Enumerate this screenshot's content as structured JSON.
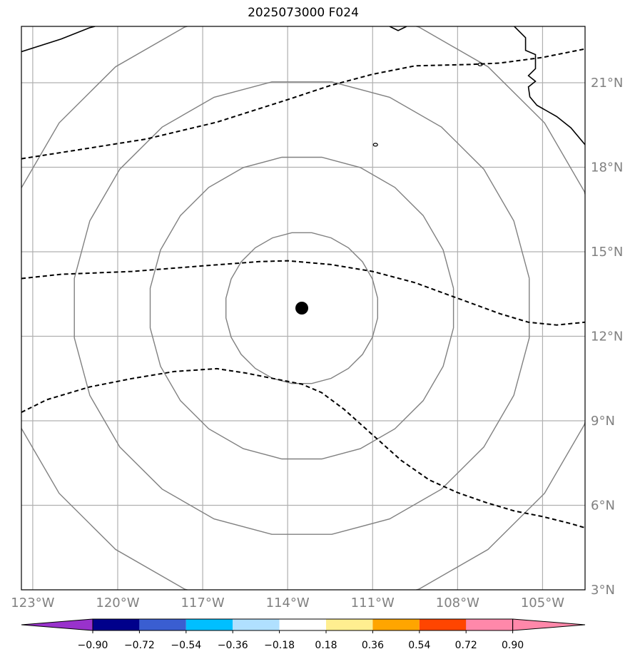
{
  "title": "2025073000 F024",
  "map": {
    "lon_range": [
      -123.4,
      -103.5
    ],
    "lat_range": [
      3,
      23
    ],
    "storm_center": {
      "lon": -113.5,
      "lat": 13
    },
    "range_ring_radii_deg": [
      2.7,
      5.4,
      8.1,
      10.8
    ],
    "lon_ticks": [
      {
        "value": -123,
        "label": "123°W"
      },
      {
        "value": -120,
        "label": "120°W"
      },
      {
        "value": -117,
        "label": "117°W"
      },
      {
        "value": -114,
        "label": "114°W"
      },
      {
        "value": -111,
        "label": "111°W"
      },
      {
        "value": -108,
        "label": "108°W"
      },
      {
        "value": -105,
        "label": "105°W"
      }
    ],
    "lat_ticks": [
      {
        "value": 3,
        "label": "3°N"
      },
      {
        "value": 6,
        "label": "6°N"
      },
      {
        "value": 9,
        "label": "9°N"
      },
      {
        "value": 12,
        "label": "12°N"
      },
      {
        "value": 15,
        "label": "15°N"
      },
      {
        "value": 18,
        "label": "18°N"
      },
      {
        "value": 21,
        "label": "21°N"
      }
    ],
    "dashed_contours": [
      [
        [
          -123.4,
          18.3
        ],
        [
          -121.5,
          18.6
        ],
        [
          -119,
          19.0
        ],
        [
          -116.5,
          19.6
        ],
        [
          -114,
          20.4
        ],
        [
          -112.5,
          20.9
        ],
        [
          -111,
          21.3
        ],
        [
          -109.5,
          21.6
        ],
        [
          -107.5,
          21.65
        ],
        [
          -106.5,
          21.7
        ],
        [
          -105,
          21.9
        ],
        [
          -103.5,
          22.2
        ]
      ],
      [
        [
          -123.4,
          14.05
        ],
        [
          -122,
          14.2
        ],
        [
          -119.5,
          14.3
        ],
        [
          -117,
          14.5
        ],
        [
          -115,
          14.65
        ],
        [
          -114,
          14.68
        ],
        [
          -112.5,
          14.55
        ],
        [
          -111,
          14.3
        ],
        [
          -109.5,
          13.9
        ],
        [
          -108,
          13.35
        ],
        [
          -106.5,
          12.8
        ],
        [
          -105.5,
          12.5
        ],
        [
          -104.5,
          12.4
        ],
        [
          -103.5,
          12.5
        ]
      ],
      [
        [
          -123.4,
          9.3
        ],
        [
          -122.5,
          9.75
        ],
        [
          -121,
          10.2
        ],
        [
          -119.5,
          10.5
        ],
        [
          -118,
          10.75
        ],
        [
          -116.5,
          10.85
        ],
        [
          -115.5,
          10.7
        ],
        [
          -114.5,
          10.5
        ],
        [
          -113.5,
          10.3
        ],
        [
          -112.8,
          10.0
        ],
        [
          -112,
          9.4
        ],
        [
          -111,
          8.5
        ],
        [
          -110,
          7.6
        ],
        [
          -109,
          6.9
        ],
        [
          -108,
          6.45
        ],
        [
          -107,
          6.1
        ],
        [
          -106,
          5.8
        ],
        [
          -105,
          5.6
        ],
        [
          -104,
          5.35
        ],
        [
          -103.5,
          5.2
        ]
      ]
    ],
    "coastlines": [
      [
        [
          -123.4,
          22.1
        ],
        [
          -122,
          22.55
        ],
        [
          -121,
          22.95
        ],
        [
          -120.8,
          23.0
        ]
      ],
      [
        [
          -106.0,
          23.0
        ],
        [
          -105.6,
          22.6
        ],
        [
          -105.6,
          22.15
        ],
        [
          -105.25,
          22.0
        ],
        [
          -105.25,
          21.5
        ],
        [
          -105.5,
          21.25
        ],
        [
          -105.25,
          21.05
        ],
        [
          -105.5,
          20.85
        ],
        [
          -105.45,
          20.5
        ],
        [
          -105.2,
          20.2
        ],
        [
          -104.5,
          19.8
        ],
        [
          -104.0,
          19.4
        ],
        [
          -103.5,
          18.8
        ]
      ],
      [
        [
          -110.4,
          23.0
        ],
        [
          -110.1,
          22.85
        ],
        [
          -109.8,
          23.0
        ]
      ]
    ],
    "islands": [
      {
        "lon": -110.9,
        "lat": 18.8
      },
      {
        "lon": -107.2,
        "lat": 21.65
      }
    ]
  },
  "colorbar": {
    "colors": [
      "#9932cc",
      "#00008b",
      "#3a5ed1",
      "#00bfff",
      "#b0e0ff",
      "#ffffff",
      "#ffee90",
      "#ffa500",
      "#ff4500",
      "#b22222",
      "#ff88aa"
    ],
    "tick_labels": [
      "−0.90",
      "−0.72",
      "−0.54",
      "−0.36",
      "−0.18",
      "0.18",
      "0.36",
      "0.54",
      "0.72",
      "0.90"
    ]
  }
}
